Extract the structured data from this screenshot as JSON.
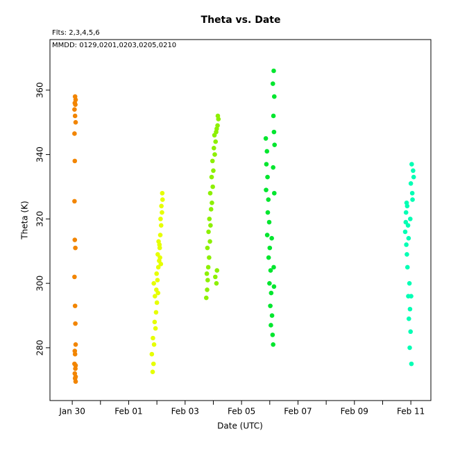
{
  "chart_data": {
    "type": "scatter",
    "title": "Theta  vs. Date",
    "subtitle": "Flts: 2,3,4,5,6",
    "annotation": "MMDD: 0129,0201,0203,0205,0210",
    "x_label": "Date (UTC)",
    "y_label": "Theta (K)",
    "xlim": [
      29.21,
      42.71
    ],
    "ylim": [
      263.6,
      375.7
    ],
    "xticks": [
      {
        "value": 30,
        "label": "Jan 30"
      },
      {
        "value": 32,
        "label": "Feb 01"
      },
      {
        "value": 34,
        "label": "Feb 03"
      },
      {
        "value": 36,
        "label": "Feb 05"
      },
      {
        "value": 38,
        "label": "Feb 07"
      },
      {
        "value": 40,
        "label": "Feb 09"
      },
      {
        "value": 42,
        "label": "Feb 11"
      }
    ],
    "xminorticks": [
      31,
      33,
      35,
      37,
      39,
      41
    ],
    "yticks": [
      280,
      300,
      320,
      340,
      360
    ],
    "series": [
      {
        "color": "#f28500",
        "x": [
          30.1,
          30.12,
          30.09,
          30.11,
          30.08,
          30.1,
          30.12,
          30.08,
          30.09,
          30.08,
          30.09,
          30.11,
          30.08,
          30.1,
          30.11,
          30.12,
          30.09,
          30.1,
          30.08,
          30.12,
          30.11,
          30.09,
          30.12,
          30.1,
          30.12
        ],
        "values": [
          358,
          357,
          356,
          355.5,
          354,
          352,
          350,
          346.5,
          338,
          325.5,
          313.5,
          311,
          302,
          293,
          287.5,
          281,
          279,
          278,
          275,
          274.5,
          273.5,
          272,
          271,
          270.5,
          269.5
        ]
      },
      {
        "color": "#e6ff00",
        "x": [
          32.85,
          32.88,
          32.82,
          32.9,
          32.86,
          32.95,
          32.92,
          32.97,
          33.0,
          32.93,
          32.98,
          33.02,
          32.99,
          33.05,
          33.08,
          33.03,
          33.1,
          33.06,
          33.12,
          33.09,
          33.15,
          33.13,
          33.18,
          33.11,
          33.16,
          33.2,
          33.14,
          33.19,
          32.89,
          33.04
        ],
        "values": [
          272.5,
          275,
          278,
          281,
          283,
          286,
          288,
          291,
          294,
          296,
          298,
          301,
          303,
          305,
          307,
          309,
          311,
          313,
          315,
          312,
          318,
          320,
          322,
          308,
          324,
          326,
          306,
          328,
          300,
          297
        ]
      },
      {
        "color": "#8cf000",
        "x": [
          34.75,
          34.78,
          34.8,
          34.77,
          34.82,
          34.85,
          34.79,
          34.88,
          34.83,
          34.9,
          34.86,
          34.92,
          34.95,
          34.89,
          34.98,
          34.94,
          35.0,
          34.97,
          35.05,
          35.02,
          35.08,
          35.04,
          35.1,
          35.12,
          35.07,
          35.15,
          35.13,
          35.18,
          35.11,
          35.16
        ],
        "values": [
          295.5,
          298,
          301,
          303,
          305,
          308,
          311,
          313,
          316,
          318,
          320,
          323,
          325,
          328,
          330,
          333,
          335,
          338,
          340,
          342,
          344,
          346,
          347,
          348,
          302,
          349,
          304,
          351,
          300,
          352
        ]
      },
      {
        "color": "#00e62e",
        "x": [
          36.86,
          36.9,
          36.88,
          36.92,
          36.87,
          36.95,
          36.93,
          36.98,
          36.91,
          37.0,
          36.96,
          37.03,
          36.99,
          37.05,
          37.02,
          37.08,
          37.04,
          37.1,
          37.12,
          37.07,
          37.14,
          37.11,
          37.16,
          37.13,
          37.15,
          37.17,
          37.12,
          37.16,
          37.14,
          37.15
        ],
        "values": [
          345,
          341,
          337,
          333,
          329,
          326,
          322,
          319,
          315,
          311,
          308,
          304,
          300,
          297,
          293,
          290,
          287,
          284,
          281,
          314,
          366,
          362,
          358,
          352,
          347,
          343,
          336,
          328,
          305,
          299
        ]
      },
      {
        "color": "#00ffb4",
        "x": [
          41.8,
          41.83,
          41.85,
          41.82,
          41.87,
          41.84,
          41.9,
          41.86,
          41.92,
          41.88,
          41.95,
          41.91,
          41.97,
          41.93,
          41.99,
          41.96,
          42.02,
          41.98,
          42.05,
          42.0,
          42.08,
          42.03,
          42.1,
          42.06,
          42.01
        ],
        "values": [
          316,
          322,
          325,
          319,
          324,
          312,
          318,
          309,
          314,
          305,
          300,
          296,
          292,
          289,
          285,
          280,
          275,
          320,
          328,
          331,
          335,
          337,
          333,
          326,
          296
        ]
      }
    ]
  }
}
